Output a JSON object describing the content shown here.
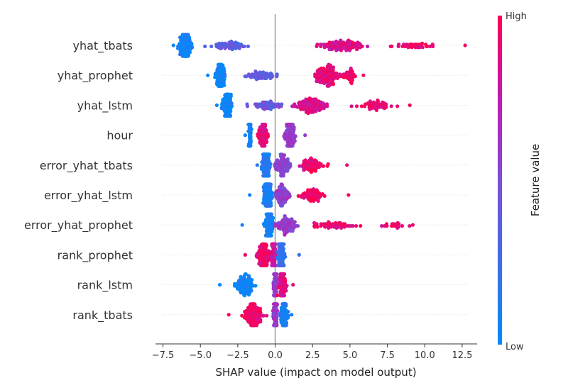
{
  "chart_data": {
    "type": "scatter",
    "subtype": "shap-beeswarm",
    "features": [
      "yhat_tbats",
      "yhat_prophet",
      "yhat_lstm",
      "hour",
      "error_yhat_tbats",
      "error_yhat_lstm",
      "error_yhat_prophet",
      "rank_prophet",
      "rank_lstm",
      "rank_tbats"
    ],
    "xlabel": "SHAP value (impact on model output)",
    "xlim": [
      -8,
      13.5
    ],
    "xticks": [
      -7.5,
      -5.0,
      -2.5,
      0.0,
      2.5,
      5.0,
      7.5,
      10.0,
      12.5
    ],
    "xtick_labels": [
      "−7.5",
      "−5.0",
      "−2.5",
      "0.0",
      "2.5",
      "5.0",
      "7.5",
      "10.0",
      "12.5"
    ],
    "colorbar": {
      "title": "Feature value",
      "high_label": "High",
      "low_label": "Low",
      "low_color": "#008bfb",
      "high_color": "#ff0051"
    },
    "zero_line": true,
    "gridlines": "dotted-horizontal",
    "distributions": [
      {
        "feature": "yhat_tbats",
        "min": -6.8,
        "max": 12.7,
        "clusters": [
          {
            "x": -6.0,
            "spread": 0.5,
            "weight": 0.45,
            "color": 0.05
          },
          {
            "x": -3.0,
            "spread": 1.5,
            "weight": 0.15,
            "color": 0.35
          },
          {
            "x": 4.5,
            "spread": 2.0,
            "weight": 0.3,
            "color": 0.85
          },
          {
            "x": 9.0,
            "spread": 1.8,
            "weight": 0.1,
            "color": 0.95
          }
        ]
      },
      {
        "feature": "yhat_prophet",
        "min": -4.5,
        "max": 5.9,
        "clusters": [
          {
            "x": -3.7,
            "spread": 0.4,
            "weight": 0.35,
            "color": 0.05
          },
          {
            "x": -1.0,
            "spread": 1.2,
            "weight": 0.15,
            "color": 0.4
          },
          {
            "x": 3.5,
            "spread": 1.0,
            "weight": 0.4,
            "color": 0.9
          },
          {
            "x": 5.0,
            "spread": 0.5,
            "weight": 0.1,
            "color": 0.95
          }
        ]
      },
      {
        "feature": "yhat_lstm",
        "min": -3.9,
        "max": 9.0,
        "clusters": [
          {
            "x": -3.2,
            "spread": 0.4,
            "weight": 0.35,
            "color": 0.05
          },
          {
            "x": -0.5,
            "spread": 1.2,
            "weight": 0.15,
            "color": 0.4
          },
          {
            "x": 2.5,
            "spread": 1.3,
            "weight": 0.35,
            "color": 0.85
          },
          {
            "x": 6.5,
            "spread": 1.5,
            "weight": 0.15,
            "color": 0.95
          }
        ]
      },
      {
        "feature": "hour",
        "min": -2.0,
        "max": 2.0,
        "clusters": [
          {
            "x": -1.7,
            "spread": 0.1,
            "weight": 0.25,
            "color": 0.05
          },
          {
            "x": -0.8,
            "spread": 0.4,
            "weight": 0.25,
            "color": 0.9
          },
          {
            "x": 1.0,
            "spread": 0.4,
            "weight": 0.5,
            "color": 0.6
          }
        ]
      },
      {
        "feature": "error_yhat_tbats",
        "min": -1.2,
        "max": 4.8,
        "clusters": [
          {
            "x": -0.6,
            "spread": 0.3,
            "weight": 0.55,
            "color": 0.15
          },
          {
            "x": 0.5,
            "spread": 0.6,
            "weight": 0.25,
            "color": 0.55
          },
          {
            "x": 2.5,
            "spread": 1.0,
            "weight": 0.2,
            "color": 0.9
          }
        ]
      },
      {
        "feature": "error_yhat_lstm",
        "min": -1.7,
        "max": 4.9,
        "clusters": [
          {
            "x": -0.5,
            "spread": 0.3,
            "weight": 0.55,
            "color": 0.1
          },
          {
            "x": 0.5,
            "spread": 0.6,
            "weight": 0.25,
            "color": 0.55
          },
          {
            "x": 2.5,
            "spread": 1.0,
            "weight": 0.2,
            "color": 0.95
          }
        ]
      },
      {
        "feature": "error_yhat_prophet",
        "min": -2.2,
        "max": 9.2,
        "clusters": [
          {
            "x": -0.4,
            "spread": 0.3,
            "weight": 0.55,
            "color": 0.1
          },
          {
            "x": 0.8,
            "spread": 0.8,
            "weight": 0.25,
            "color": 0.6
          },
          {
            "x": 4.0,
            "spread": 2.0,
            "weight": 0.15,
            "color": 0.95
          },
          {
            "x": 8.0,
            "spread": 1.0,
            "weight": 0.05,
            "color": 0.95
          }
        ]
      },
      {
        "feature": "rank_prophet",
        "min": -2.0,
        "max": 1.6,
        "clusters": [
          {
            "x": -0.8,
            "spread": 0.5,
            "weight": 0.3,
            "color": 0.95
          },
          {
            "x": -0.1,
            "spread": 0.2,
            "weight": 0.35,
            "color": 0.8
          },
          {
            "x": 0.4,
            "spread": 0.3,
            "weight": 0.35,
            "color": 0.2
          }
        ]
      },
      {
        "feature": "rank_lstm",
        "min": -3.7,
        "max": 1.2,
        "clusters": [
          {
            "x": -2.0,
            "spread": 0.8,
            "weight": 0.3,
            "color": 0.05
          },
          {
            "x": 0.0,
            "spread": 0.15,
            "weight": 0.4,
            "color": 0.6
          },
          {
            "x": 0.5,
            "spread": 0.3,
            "weight": 0.3,
            "color": 0.9
          }
        ]
      },
      {
        "feature": "rank_tbats",
        "min": -3.1,
        "max": 1.1,
        "clusters": [
          {
            "x": -1.5,
            "spread": 0.7,
            "weight": 0.4,
            "color": 0.95
          },
          {
            "x": 0.0,
            "spread": 0.15,
            "weight": 0.3,
            "color": 0.6
          },
          {
            "x": 0.6,
            "spread": 0.3,
            "weight": 0.3,
            "color": 0.1
          }
        ]
      }
    ]
  }
}
